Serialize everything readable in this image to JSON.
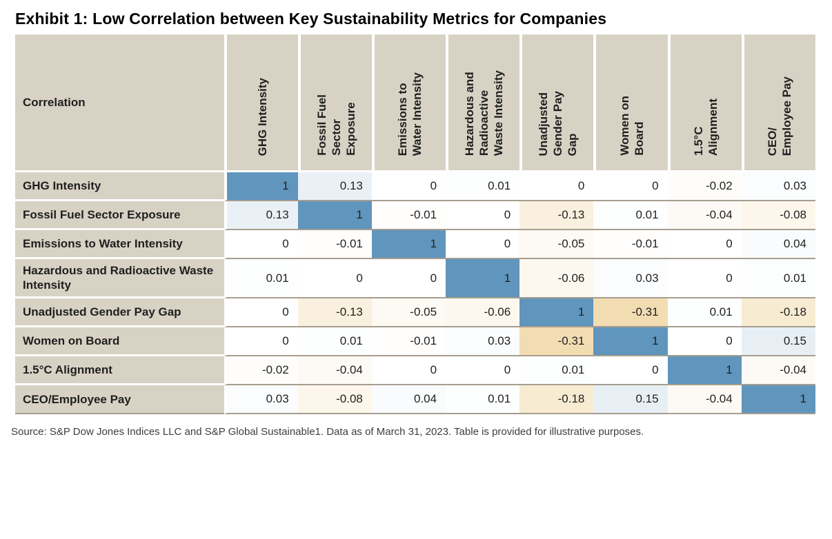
{
  "title": "Exhibit 1: Low Correlation between Key Sustainability Metrics for Companies",
  "table": {
    "corner_label": "Correlation",
    "column_labels": [
      "GHG Intensity",
      "Fossil Fuel\nSector\nExposure",
      "Emissions to\nWater Intensity",
      "Hazardous and\nRadioactive\nWaste Intensity",
      "Unadjusted\nGender Pay\nGap",
      "Women on\nBoard",
      "1.5°C\nAlignment",
      "CEO/\nEmployee Pay"
    ]
  },
  "chart_data": {
    "type": "heatmap",
    "title": "Exhibit 1: Low Correlation between Key Sustainability Metrics for Companies",
    "categories": [
      "GHG Intensity",
      "Fossil Fuel Sector Exposure",
      "Emissions to Water Intensity",
      "Hazardous and Radioactive Waste Intensity",
      "Unadjusted Gender Pay Gap",
      "Women on Board",
      "1.5°C Alignment",
      "CEO/Employee Pay"
    ],
    "matrix": [
      [
        1,
        0.13,
        0,
        0.01,
        0,
        0,
        -0.02,
        0.03
      ],
      [
        0.13,
        1,
        -0.01,
        0,
        -0.13,
        0.01,
        -0.04,
        -0.08
      ],
      [
        0,
        -0.01,
        1,
        0,
        -0.05,
        -0.01,
        0,
        0.04
      ],
      [
        0.01,
        0,
        0,
        1,
        -0.06,
        0.03,
        0,
        0.01
      ],
      [
        0,
        -0.13,
        -0.05,
        -0.06,
        1,
        -0.31,
        0.01,
        -0.18
      ],
      [
        0,
        0.01,
        -0.01,
        0.03,
        -0.31,
        1,
        0,
        0.15
      ],
      [
        -0.02,
        -0.04,
        0,
        0,
        0.01,
        0,
        1,
        -0.04
      ],
      [
        0.03,
        -0.08,
        0.04,
        0.01,
        -0.18,
        0.15,
        -0.04,
        1
      ]
    ],
    "colors": {
      "positive_full": "#6095bd",
      "positive_anchor": 1,
      "negative_full": "#f2dcb2",
      "negative_anchor": 0.31,
      "zero": "#ffffff"
    },
    "legend_position": "none",
    "grid": false
  },
  "colors": {
    "header_bg": "#d8d2c5",
    "row_divider": "#a69d8e",
    "gap": "#ffffff"
  },
  "source_note": "Source: S&P Dow Jones Indices LLC and S&P Global Sustainable1. Data as of March 31, 2023. Table is provided for illustrative purposes."
}
